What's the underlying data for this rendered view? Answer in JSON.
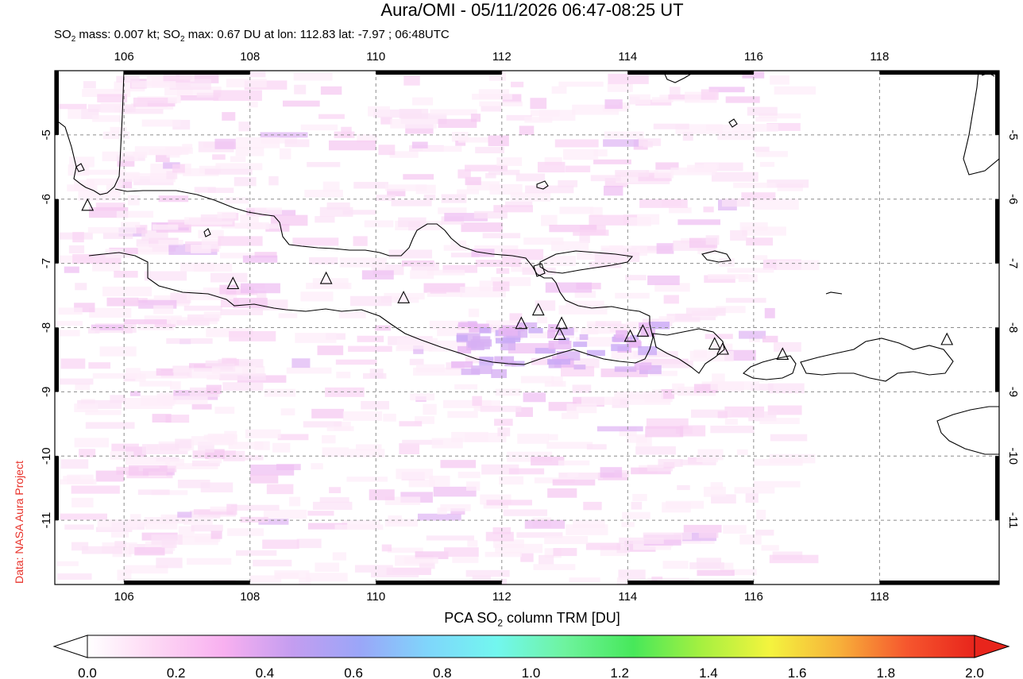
{
  "title": "Aura/OMI - 05/11/2026 06:47-08:25 UT",
  "subtitle": {
    "mass_prefix": "SO",
    "mass_sub": "2",
    "mass_text": " mass: 0.007 kt; SO",
    "max_sub": "2",
    "max_text": " max: 0.67 DU at lon: 112.83 lat: -7.97 ; 06:48UTC"
  },
  "credit": "Data: NASA Aura Project",
  "colorbar": {
    "label_prefix": "PCA SO",
    "label_sub": "2",
    "label_suffix": " column TRM [DU]",
    "ticks": [
      "0.0",
      "0.2",
      "0.4",
      "0.6",
      "0.8",
      "1.0",
      "1.2",
      "1.4",
      "1.6",
      "1.8",
      "2.0"
    ],
    "range": [
      0.0,
      2.0
    ],
    "stops": [
      "#ffffff",
      "#fdd7f4",
      "#f8b0f0",
      "#c49df0",
      "#9aa6f8",
      "#7fd6fb",
      "#72f7ef",
      "#6ef39e",
      "#47e85a",
      "#a6f040",
      "#f4f43e",
      "#f7b23a",
      "#f6572e",
      "#e8251c"
    ]
  },
  "map": {
    "lon_range": [
      104.9,
      119.9
    ],
    "lat_range": [
      -12.0,
      -4.0
    ],
    "lon_ticks": [
      "106",
      "108",
      "110",
      "112",
      "114",
      "116",
      "118"
    ],
    "lat_ticks": [
      "-5",
      "-6",
      "-7",
      "-8",
      "-9",
      "-10",
      "-11"
    ],
    "volcanoes": [
      {
        "lon": 105.42,
        "lat": -6.1
      },
      {
        "lon": 107.73,
        "lat": -7.32
      },
      {
        "lon": 109.21,
        "lat": -7.24
      },
      {
        "lon": 110.44,
        "lat": -7.54
      },
      {
        "lon": 112.31,
        "lat": -7.94
      },
      {
        "lon": 112.58,
        "lat": -7.73
      },
      {
        "lon": 112.95,
        "lat": -7.94
      },
      {
        "lon": 112.92,
        "lat": -8.11
      },
      {
        "lon": 114.04,
        "lat": -8.14
      },
      {
        "lon": 114.24,
        "lat": -8.06
      },
      {
        "lon": 115.38,
        "lat": -8.26
      },
      {
        "lon": 115.51,
        "lat": -8.34
      },
      {
        "lon": 116.46,
        "lat": -8.42
      },
      {
        "lon": 119.07,
        "lat": -8.19
      }
    ]
  }
}
